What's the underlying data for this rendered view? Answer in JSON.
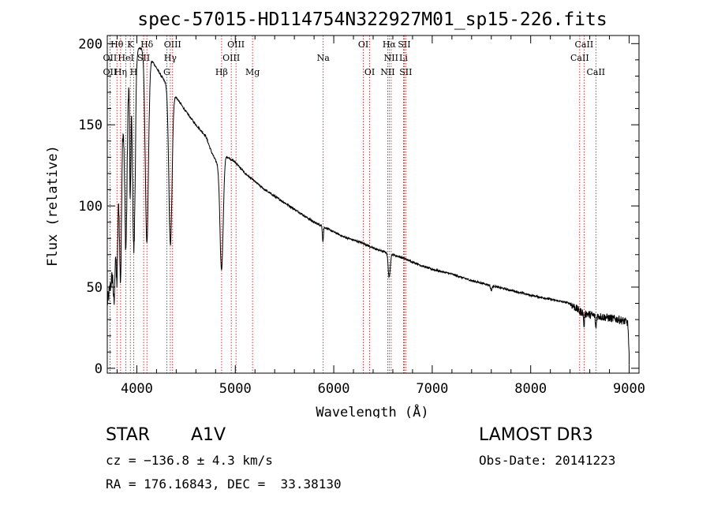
{
  "chart_data": {
    "type": "line",
    "title": "spec-57015-HD114754N322927M01_sp15-226.fits",
    "xlabel": "Wavelength (Å)",
    "ylabel": "Flux (relative)",
    "xlim": [
      3700,
      9100
    ],
    "ylim": [
      -3,
      205
    ],
    "xticks": [
      4000,
      5000,
      6000,
      7000,
      8000,
      9000
    ],
    "yticks": [
      0,
      50,
      100,
      150,
      200
    ],
    "x_minor_step": 200,
    "y_minor_step": 10,
    "continuum": [
      [
        3700,
        40
      ],
      [
        3760,
        60
      ],
      [
        3800,
        100
      ],
      [
        3850,
        150
      ],
      [
        3900,
        175
      ],
      [
        3950,
        190
      ],
      [
        4000,
        197
      ],
      [
        4050,
        197
      ],
      [
        4100,
        193
      ],
      [
        4150,
        190
      ],
      [
        4200,
        185
      ],
      [
        4250,
        180
      ],
      [
        4300,
        175
      ],
      [
        4350,
        170
      ],
      [
        4400,
        167
      ],
      [
        4500,
        158
      ],
      [
        4600,
        150
      ],
      [
        4700,
        143
      ],
      [
        4760,
        133
      ],
      [
        4800,
        128
      ],
      [
        4850,
        124
      ],
      [
        4900,
        131
      ],
      [
        5000,
        127
      ],
      [
        5100,
        120
      ],
      [
        5200,
        115
      ],
      [
        5300,
        110
      ],
      [
        5400,
        106
      ],
      [
        5500,
        102
      ],
      [
        5600,
        98
      ],
      [
        5700,
        94
      ],
      [
        5800,
        90
      ],
      [
        5900,
        87
      ],
      [
        6000,
        84
      ],
      [
        6100,
        81
      ],
      [
        6200,
        79
      ],
      [
        6300,
        77
      ],
      [
        6400,
        74
      ],
      [
        6500,
        72
      ],
      [
        6600,
        70
      ],
      [
        6700,
        68
      ],
      [
        6800,
        65.5
      ],
      [
        6900,
        63
      ],
      [
        7000,
        61
      ],
      [
        7200,
        58
      ],
      [
        7400,
        54
      ],
      [
        7600,
        51
      ],
      [
        7800,
        48
      ],
      [
        8000,
        45
      ],
      [
        8200,
        42.5
      ],
      [
        8400,
        40
      ],
      [
        8500,
        35
      ],
      [
        8600,
        33
      ],
      [
        8700,
        32
      ],
      [
        8800,
        31
      ],
      [
        8900,
        30
      ],
      [
        9000,
        28
      ]
    ],
    "absorption_lines": [
      {
        "center": 3770,
        "depth": 30,
        "width": 7
      },
      {
        "center": 3798,
        "depth": 45,
        "width": 8
      },
      {
        "center": 3835,
        "depth": 80,
        "width": 10
      },
      {
        "center": 3889,
        "depth": 95,
        "width": 12
      },
      {
        "center": 3933,
        "depth": 80,
        "width": 6
      },
      {
        "center": 3970,
        "depth": 120,
        "width": 14
      },
      {
        "center": 4102,
        "depth": 115,
        "width": 16
      },
      {
        "center": 4341,
        "depth": 95,
        "width": 16
      },
      {
        "center": 4861,
        "depth": 65,
        "width": 16
      },
      {
        "center": 5890,
        "depth": 9,
        "width": 5
      },
      {
        "center": 6563,
        "depth": 15,
        "width": 10
      },
      {
        "center": 7600,
        "depth": 3,
        "width": 8
      },
      {
        "center": 8542,
        "depth": 8,
        "width": 5
      },
      {
        "center": 8662,
        "depth": 8,
        "width": 5
      },
      {
        "center": 9000,
        "depth": 20,
        "width": 6
      }
    ],
    "lines": [
      {
        "label": "Hθ",
        "wavelength": 3798,
        "row": 0
      },
      {
        "label": "OII",
        "wavelength": 3727,
        "row": 1
      },
      {
        "label": "OII",
        "wavelength": 3727,
        "row": 2
      },
      {
        "label": "Hη",
        "wavelength": 3835,
        "row": 2
      },
      {
        "label": "HeI",
        "wavelength": 3889,
        "row": 1
      },
      {
        "label": "K",
        "wavelength": 3934,
        "row": 0
      },
      {
        "label": "SII",
        "wavelength": 4069,
        "row": 1
      },
      {
        "label": "H",
        "wavelength": 3969,
        "row": 2
      },
      {
        "label": "Hδ",
        "wavelength": 4102,
        "row": 0
      },
      {
        "label": "OIII",
        "wavelength": 4363,
        "row": 0
      },
      {
        "label": "Hγ",
        "wavelength": 4340,
        "row": 1
      },
      {
        "label": "G",
        "wavelength": 4304,
        "row": 2
      },
      {
        "label": "Hβ",
        "wavelength": 4861,
        "row": 2
      },
      {
        "label": "OIII",
        "wavelength": 4959,
        "row": 1
      },
      {
        "label": "OIII",
        "wavelength": 5007,
        "row": 0
      },
      {
        "label": "Mg",
        "wavelength": 5175,
        "row": 2
      },
      {
        "label": "Na",
        "wavelength": 5893,
        "row": 1
      },
      {
        "label": "OI",
        "wavelength": 6300,
        "row": 0
      },
      {
        "label": "OI",
        "wavelength": 6364,
        "row": 2
      },
      {
        "label": "Hα",
        "wavelength": 6563,
        "row": 0
      },
      {
        "label": "NII",
        "wavelength": 6583,
        "row": 1
      },
      {
        "label": "NII",
        "wavelength": 6548,
        "row": 2
      },
      {
        "label": "SII",
        "wavelength": 6716,
        "row": 0
      },
      {
        "label": "Li",
        "wavelength": 6708,
        "row": 1
      },
      {
        "label": "SII",
        "wavelength": 6731,
        "row": 2
      },
      {
        "label": "CaII",
        "wavelength": 8542,
        "row": 0
      },
      {
        "label": "CaII",
        "wavelength": 8498,
        "row": 1
      },
      {
        "label": "CaII",
        "wavelength": 8662,
        "row": 2
      }
    ]
  },
  "info": {
    "class": "STAR",
    "subclass": "A1V",
    "survey": "LAMOST DR3",
    "cz": "cz = −136.8 ± 4.3 km/s",
    "obs_date": "Obs-Date: 20141223",
    "coords": "RA = 176.16843, DEC =  33.38130"
  },
  "colors": {
    "line_marker": "#cc0000",
    "spectrum": "#000000",
    "axes": "#000000"
  }
}
